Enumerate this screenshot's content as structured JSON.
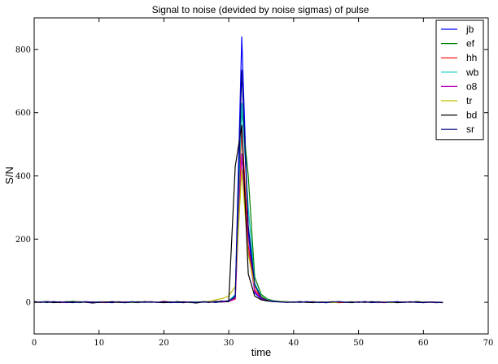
{
  "chart_data": {
    "type": "line",
    "title": "Signal to noise (devided by noise sigmas) of pulse",
    "xlabel": "time",
    "ylabel": "S/N",
    "xlim": [
      0,
      70
    ],
    "ylim": [
      -100,
      900
    ],
    "xticks": [
      0,
      10,
      20,
      30,
      40,
      50,
      60,
      70
    ],
    "yticks": [
      0,
      200,
      400,
      600,
      800
    ],
    "grid": false,
    "legend_position": "top-right",
    "x": [
      0,
      1,
      2,
      3,
      4,
      5,
      6,
      7,
      8,
      9,
      10,
      11,
      12,
      13,
      14,
      15,
      16,
      17,
      18,
      19,
      20,
      21,
      22,
      23,
      24,
      25,
      26,
      27,
      28,
      29,
      30,
      31,
      32,
      33,
      34,
      35,
      36,
      37,
      38,
      39,
      40,
      41,
      42,
      43,
      44,
      45,
      46,
      47,
      48,
      49,
      50,
      51,
      52,
      53,
      54,
      55,
      56,
      57,
      58,
      59,
      60,
      61,
      62,
      63
    ],
    "series": [
      {
        "name": "jb",
        "color": "#0000ff",
        "values": [
          2,
          1,
          3,
          0,
          2,
          -1,
          1,
          2,
          0,
          -2,
          1,
          0,
          2,
          1,
          -1,
          0,
          2,
          1,
          0,
          1,
          2,
          -1,
          0,
          1,
          0,
          -2,
          1,
          0,
          3,
          2,
          5,
          20,
          840,
          220,
          30,
          10,
          5,
          3,
          2,
          1,
          0,
          1,
          2,
          0,
          1,
          -1,
          0,
          2,
          1,
          0,
          1,
          2,
          0,
          -1,
          0,
          1,
          2,
          0,
          1,
          0,
          -1,
          0,
          1,
          0
        ]
      },
      {
        "name": "ef",
        "color": "#008000",
        "values": [
          0,
          1,
          -1,
          2,
          0,
          1,
          3,
          1,
          0,
          2,
          -1,
          1,
          0,
          2,
          1,
          0,
          -1,
          1,
          2,
          0,
          1,
          0,
          2,
          1,
          -1,
          0,
          1,
          2,
          0,
          1,
          2,
          15,
          610,
          400,
          80,
          25,
          10,
          5,
          3,
          2,
          1,
          0,
          1,
          2,
          0,
          1,
          0,
          -1,
          1,
          2,
          0,
          1,
          0,
          2,
          1,
          0,
          -1,
          1,
          0,
          2,
          1,
          0,
          -1,
          0
        ]
      },
      {
        "name": "hh",
        "color": "#ff0000",
        "values": [
          1,
          0,
          2,
          1,
          -1,
          0,
          1,
          2,
          0,
          1,
          0,
          -1,
          1,
          2,
          0,
          1,
          0,
          2,
          1,
          0,
          3,
          1,
          0,
          -1,
          1,
          0,
          2,
          1,
          0,
          2,
          3,
          10,
          560,
          180,
          40,
          15,
          6,
          3,
          2,
          1,
          0,
          1,
          0,
          2,
          1,
          0,
          1,
          -1,
          0,
          1,
          2,
          0,
          1,
          0,
          -1,
          1,
          0,
          2,
          0,
          1,
          0,
          1,
          0,
          -1
        ]
      },
      {
        "name": "wb",
        "color": "#00bfbf",
        "values": [
          0,
          2,
          1,
          0,
          1,
          2,
          0,
          -1,
          1,
          0,
          2,
          1,
          0,
          1,
          -1,
          0,
          2,
          1,
          0,
          1,
          0,
          2,
          -1,
          0,
          1,
          2,
          0,
          1,
          0,
          2,
          4,
          25,
          630,
          300,
          60,
          20,
          8,
          4,
          2,
          1,
          0,
          2,
          1,
          0,
          -1,
          1,
          0,
          2,
          1,
          0,
          1,
          0,
          2,
          1,
          0,
          -1,
          1,
          0,
          2,
          0,
          1,
          0,
          -1,
          0
        ]
      },
      {
        "name": "o8",
        "color": "#bf00bf",
        "values": [
          1,
          0,
          1,
          2,
          0,
          -1,
          1,
          0,
          2,
          1,
          0,
          1,
          -1,
          0,
          2,
          1,
          0,
          1,
          2,
          0,
          -1,
          1,
          0,
          2,
          1,
          0,
          1,
          0,
          2,
          1,
          3,
          12,
          470,
          160,
          35,
          12,
          5,
          3,
          1,
          0,
          1,
          2,
          0,
          1,
          0,
          -1,
          1,
          2,
          0,
          1,
          0,
          2,
          1,
          0,
          -1,
          1,
          0,
          1,
          2,
          0,
          1,
          0,
          -1,
          0
        ]
      },
      {
        "name": "tr",
        "color": "#bfbf00",
        "values": [
          0,
          1,
          2,
          0,
          1,
          0,
          -1,
          2,
          1,
          0,
          1,
          2,
          0,
          -1,
          1,
          0,
          2,
          1,
          0,
          1,
          0,
          2,
          1,
          -1,
          0,
          1,
          2,
          3,
          8,
          12,
          20,
          50,
          420,
          150,
          50,
          18,
          7,
          3,
          2,
          1,
          0,
          1,
          0,
          2,
          1,
          0,
          -1,
          1,
          0,
          2,
          1,
          0,
          1,
          0,
          2,
          -1,
          0,
          1,
          0,
          2,
          1,
          0,
          1,
          0
        ]
      },
      {
        "name": "bd",
        "color": "#000000",
        "values": [
          2,
          0,
          1,
          -1,
          0,
          2,
          1,
          0,
          1,
          -2,
          0,
          1,
          2,
          0,
          -1,
          1,
          0,
          2,
          1,
          0,
          -1,
          0,
          2,
          1,
          0,
          -2,
          1,
          0,
          2,
          4,
          2,
          430,
          560,
          90,
          20,
          8,
          4,
          2,
          1,
          0,
          1,
          2,
          0,
          -1,
          1,
          0,
          2,
          1,
          0,
          -1,
          1,
          0,
          2,
          1,
          0,
          1,
          -1,
          0,
          1,
          2,
          0,
          1,
          0,
          -1
        ]
      },
      {
        "name": "sr",
        "color": "#000080",
        "values": [
          0,
          1,
          0,
          2,
          1,
          0,
          -1,
          1,
          2,
          0,
          1,
          0,
          -1,
          1,
          0,
          2,
          1,
          0,
          1,
          0,
          2,
          1,
          0,
          -1,
          1,
          0,
          2,
          1,
          0,
          3,
          5,
          18,
          735,
          240,
          55,
          15,
          6,
          3,
          1,
          0,
          1,
          0,
          2,
          1,
          0,
          -1,
          1,
          2,
          0,
          1,
          0,
          2,
          -1,
          1,
          0,
          1,
          2,
          0,
          1,
          0,
          -1,
          1,
          0,
          0
        ]
      }
    ]
  }
}
